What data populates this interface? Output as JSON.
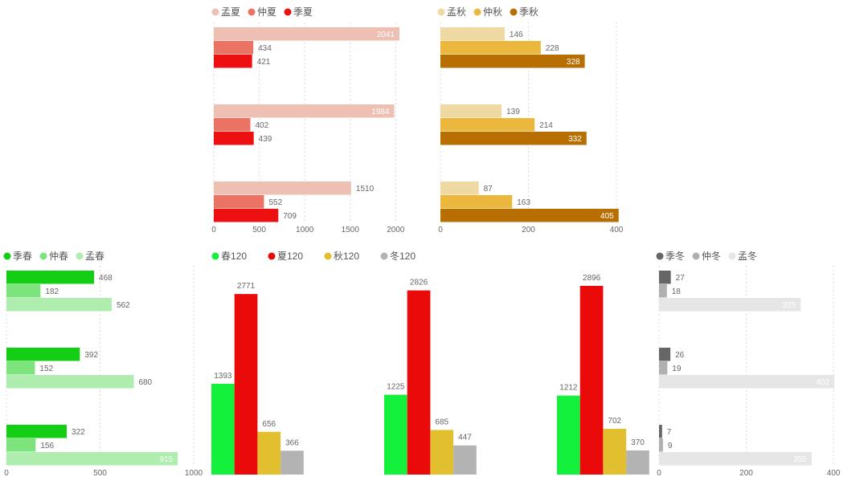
{
  "chart_data": [
    {
      "id": "summer",
      "type": "bar",
      "orientation": "horizontal",
      "series": [
        {
          "name": "孟夏",
          "color": "#eebfb3",
          "values": [
            2041,
            1984,
            1510
          ]
        },
        {
          "name": "仲夏",
          "color": "#ec7363",
          "values": [
            434,
            402,
            552
          ]
        },
        {
          "name": "季夏",
          "color": "#ec1010",
          "values": [
            421,
            439,
            709
          ]
        }
      ],
      "xlim": [
        0,
        2200
      ],
      "xticks": [
        0,
        500,
        1000,
        1500,
        2000
      ],
      "grid": true,
      "legend": "top-left"
    },
    {
      "id": "autumn",
      "type": "bar",
      "orientation": "horizontal",
      "series": [
        {
          "name": "孟秋",
          "color": "#efd9a3",
          "values": [
            146,
            139,
            87
          ]
        },
        {
          "name": "仲秋",
          "color": "#ebb73d",
          "values": [
            228,
            214,
            163
          ]
        },
        {
          "name": "季秋",
          "color": "#b76f04",
          "values": [
            328,
            332,
            405
          ]
        }
      ],
      "xlim": [
        0,
        400
      ],
      "xticks": [
        0,
        200,
        400
      ],
      "grid": true,
      "legend": "top-left"
    },
    {
      "id": "spring",
      "type": "bar",
      "orientation": "horizontal",
      "series": [
        {
          "name": "季春",
          "color": "#13cf13",
          "values": [
            468,
            392,
            322
          ]
        },
        {
          "name": "仲春",
          "color": "#7de47d",
          "values": [
            182,
            152,
            156
          ]
        },
        {
          "name": "孟春",
          "color": "#aeedae",
          "values": [
            562,
            680,
            915
          ]
        }
      ],
      "xlim": [
        0,
        1000
      ],
      "xticks": [
        0,
        500,
        1000
      ],
      "grid": true,
      "legend": "top-left"
    },
    {
      "id": "seasons120",
      "type": "bar",
      "orientation": "vertical",
      "series": [
        {
          "name": "春120",
          "color": "#13f13c",
          "values": [
            1393,
            1225,
            1212
          ]
        },
        {
          "name": "夏120",
          "color": "#ea0a0a",
          "values": [
            2771,
            2826,
            2896
          ]
        },
        {
          "name": "秋120",
          "color": "#e2bf2f",
          "values": [
            656,
            685,
            702
          ]
        },
        {
          "name": "冬120",
          "color": "#b3b3b3",
          "values": [
            366,
            447,
            370
          ]
        }
      ],
      "ylim": [
        0,
        2896
      ],
      "grid": false,
      "legend": "top-left"
    },
    {
      "id": "winter",
      "type": "bar",
      "orientation": "horizontal",
      "series": [
        {
          "name": "季冬",
          "color": "#666666",
          "values": [
            27,
            26,
            7
          ]
        },
        {
          "name": "仲冬",
          "color": "#b0b0b0",
          "values": [
            18,
            19,
            9
          ]
        },
        {
          "name": "孟冬",
          "color": "#e6e6e6",
          "values": [
            325,
            402,
            350
          ]
        }
      ],
      "xlim": [
        0,
        400
      ],
      "xticks": [
        0,
        200,
        400
      ],
      "grid": true,
      "legend": "top-left"
    }
  ]
}
